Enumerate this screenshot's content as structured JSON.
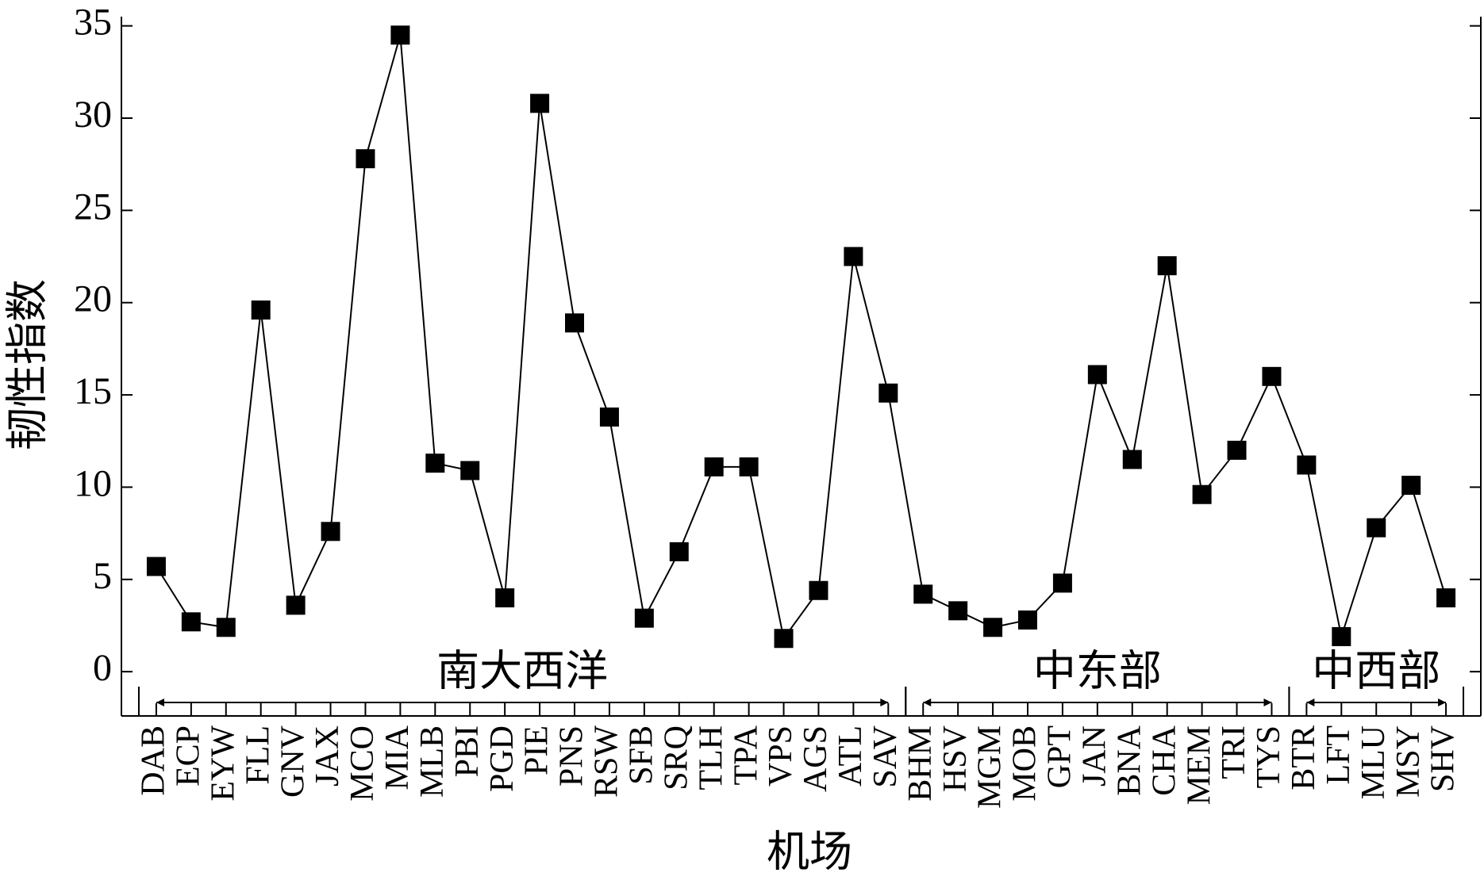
{
  "chart_data": {
    "type": "line",
    "x_label": "机场",
    "y_label": "韧性指数",
    "categories": [
      "DAB",
      "ECP",
      "EYW",
      "FLL",
      "GNV",
      "JAX",
      "MCO",
      "MIA",
      "MLB",
      "PBI",
      "PGD",
      "PIE",
      "PNS",
      "RSW",
      "SFB",
      "SRQ",
      "TLH",
      "TPA",
      "VPS",
      "AGS",
      "ATL",
      "SAV",
      "BHM",
      "HSV",
      "MGM",
      "MOB",
      "GPT",
      "JAN",
      "BNA",
      "CHA",
      "MEM",
      "TRI",
      "TYS",
      "BTR",
      "LFT",
      "MLU",
      "MSY",
      "SHV"
    ],
    "values": [
      5.7,
      2.7,
      2.4,
      19.6,
      3.6,
      7.6,
      27.8,
      34.5,
      11.3,
      10.9,
      4.0,
      30.8,
      18.9,
      13.8,
      2.9,
      6.5,
      11.1,
      11.1,
      1.8,
      4.4,
      22.5,
      15.1,
      4.2,
      3.3,
      2.4,
      2.8,
      4.8,
      16.1,
      11.5,
      22.0,
      9.6,
      12.0,
      16.0,
      11.2,
      1.9,
      7.8,
      10.1,
      4.0
    ],
    "color": "#000000",
    "ylim": [
      -2.4,
      35.5
    ],
    "yticks": [
      0,
      5,
      10,
      15,
      20,
      25,
      30,
      35
    ],
    "regions": [
      {
        "label": "南大西洋",
        "from": "DAB",
        "to": "SAV"
      },
      {
        "label": "中东部",
        "from": "BHM",
        "to": "TYS"
      },
      {
        "label": "中西部",
        "from": "BTR",
        "to": "SHV"
      }
    ]
  }
}
